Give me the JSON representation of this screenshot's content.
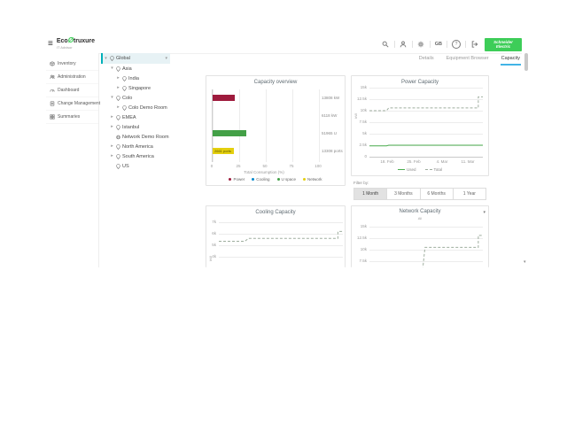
{
  "icons": {
    "menu": "≡",
    "chevron_down": "▾",
    "chevron_right": "▸",
    "caret_down": "▾",
    "scroll_down": "▾",
    "tree_options": "▾",
    "help": "?"
  },
  "topbar": {
    "logo_part1": "Eco",
    "logo_part2": "truxure",
    "logo_sub": "IT Advisor",
    "language": "GB",
    "brand_line1": "Schneider",
    "brand_line2": "Electric",
    "brand_color": "#3dcd58"
  },
  "sidebar": {
    "items": [
      {
        "label": "Inventory",
        "icon": "inventory-icon"
      },
      {
        "label": "Administration",
        "icon": "administration-icon"
      },
      {
        "label": "Dashboard",
        "icon": "dashboard-icon"
      },
      {
        "label": "Change Management",
        "icon": "change-management-icon"
      },
      {
        "label": "Summaries",
        "icon": "summaries-icon"
      }
    ]
  },
  "tree": {
    "items": [
      {
        "label": "Global",
        "level": 0,
        "state": "expanded",
        "selected": true,
        "icon": "location-icon"
      },
      {
        "label": "Asia",
        "level": 1,
        "state": "expanded",
        "icon": "location-icon"
      },
      {
        "label": "India",
        "level": 2,
        "state": "collapsed",
        "icon": "location-icon"
      },
      {
        "label": "Singapore",
        "level": 2,
        "state": "collapsed",
        "icon": "location-icon"
      },
      {
        "label": "Colo",
        "level": 1,
        "state": "expanded",
        "icon": "location-icon"
      },
      {
        "label": "Colo Demo Room",
        "level": 2,
        "state": "collapsed",
        "icon": "location-icon"
      },
      {
        "label": "EMEA",
        "level": 1,
        "state": "collapsed",
        "icon": "location-icon"
      },
      {
        "label": "Istanbul",
        "level": 1,
        "state": "collapsed",
        "icon": "location-icon"
      },
      {
        "label": "Network Demo Room",
        "level": 1,
        "state": "none",
        "icon": "globe-icon"
      },
      {
        "label": "North America",
        "level": 1,
        "state": "collapsed",
        "icon": "location-icon"
      },
      {
        "label": "South America",
        "level": 1,
        "state": "collapsed",
        "icon": "location-icon"
      },
      {
        "label": "US",
        "level": 1,
        "state": "none",
        "icon": "location-icon"
      }
    ]
  },
  "tabs": [
    {
      "label": "Details",
      "active": false
    },
    {
      "label": "Equipment Browser",
      "active": false
    },
    {
      "label": "Capacity",
      "active": true
    }
  ],
  "filter": {
    "label": "Filter by:",
    "options": [
      "1 Month",
      "3 Months",
      "6 Months",
      "1 Year"
    ],
    "selected": "1 Month"
  },
  "charts": {
    "overview": {
      "title": "Capacity overview",
      "xlabel": "Total Consumption (%)",
      "xticks": [
        "0",
        "25",
        "50",
        "75",
        "100"
      ],
      "legend": [
        {
          "label": "Power",
          "color": "#9e1b3d"
        },
        {
          "label": "Cooling",
          "color": "#0087cd"
        },
        {
          "label": "U space",
          "color": "#43a047"
        },
        {
          "label": "Network",
          "color": "#e4cf0e"
        }
      ],
      "chart_data": {
        "type": "bar",
        "orientation": "horizontal",
        "categories": [
          "Power",
          "Cooling",
          "U space",
          "Network"
        ],
        "values_percent": [
          21,
          0,
          32,
          20
        ],
        "capacity_labels": [
          "13808 kW",
          "6118 kW",
          "51965 U",
          "13308 ports"
        ],
        "network_bar_label": "2661 ports",
        "colors": [
          "#9e1b3d",
          "#0087cd",
          "#43a047",
          "#e4cf0e"
        ],
        "xlim": [
          0,
          100
        ],
        "xlabel": "Total Consumption (%)"
      }
    },
    "power": {
      "title": "Power Capacity",
      "ylabel": "kW",
      "yticks": [
        "15k",
        "12.5k",
        "10k",
        "7.5k",
        "5k",
        "2.5k",
        "0"
      ],
      "xticks": [
        "18. Feb",
        "25. Feb",
        "4. Mar",
        "11. Mar"
      ],
      "legend": [
        {
          "label": "Used",
          "style": "solid-green"
        },
        {
          "label": "Total",
          "style": "dashed-gray"
        }
      ],
      "chart_data": {
        "type": "line",
        "ylim": [
          0,
          15000
        ],
        "ytick_values": [
          0,
          2500,
          5000,
          7500,
          10000,
          12500,
          15000
        ],
        "x_axis_dates": [
          "18. Feb",
          "25. Feb",
          "4. Mar",
          "11. Mar"
        ],
        "series": [
          {
            "name": "Used",
            "color": "#4caf50",
            "dash": false,
            "points": [
              [
                0,
                2350
              ],
              [
                15,
                2350
              ],
              [
                17,
                2500
              ],
              [
                100,
                2500
              ]
            ]
          },
          {
            "name": "Total",
            "color": "#9fae9f",
            "dash": true,
            "points": [
              [
                0,
                10000
              ],
              [
                15,
                10000
              ],
              [
                17,
                10600
              ],
              [
                96,
                10600
              ],
              [
                96,
                13000
              ],
              [
                100,
                13000
              ]
            ]
          }
        ]
      }
    },
    "cooling": {
      "title": "Cooling Capacity",
      "ylabel": "kW",
      "yticks": [
        "7k",
        "6k",
        "5k",
        "4k"
      ],
      "chart_data": {
        "type": "line",
        "ylim": [
          3000,
          7000
        ],
        "ytick_values": [
          7000,
          6000,
          5000,
          4000
        ],
        "series": [
          {
            "name": "Total",
            "color": "#9fae9f",
            "dash": true,
            "points": [
              [
                0,
                5350
              ],
              [
                21,
                5350
              ],
              [
                24,
                5600
              ],
              [
                96,
                5600
              ],
              [
                96,
                6200
              ],
              [
                100,
                6200
              ]
            ]
          }
        ]
      }
    },
    "network": {
      "title": "Network Capacity",
      "subtitle": "All",
      "yticks": [
        "15k",
        "12.5k",
        "10k",
        "7.5k"
      ],
      "chart_data": {
        "type": "line",
        "ylim": [
          5962,
          15000
        ],
        "ytick_values": [
          15000,
          12500,
          10000,
          7500
        ],
        "series": [
          {
            "name": "Total",
            "color": "#9fae9f",
            "dash": true,
            "points": [
              [
                0,
                3500
              ],
              [
                46,
                3500
              ],
              [
                49,
                10500
              ],
              [
                96,
                10500
              ],
              [
                96,
                13100
              ],
              [
                100,
                13100
              ]
            ]
          }
        ]
      }
    }
  }
}
